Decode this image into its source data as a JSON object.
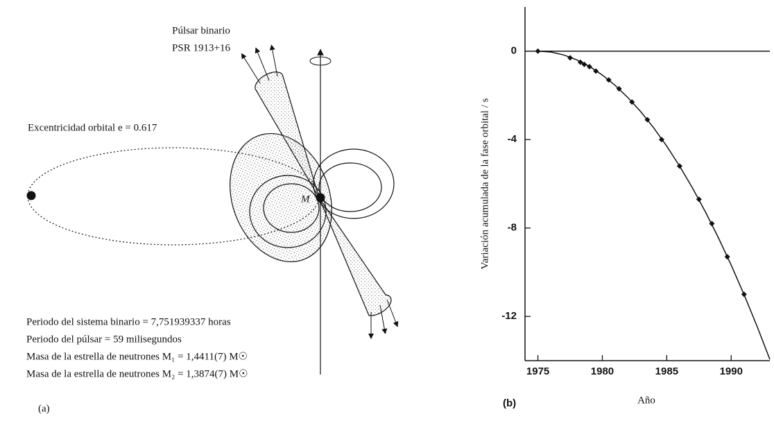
{
  "diagram": {
    "title": "Púlsar binario",
    "designation": "PSR 1913+16",
    "eccentricity": "Excentricidad orbital e = 0.617",
    "mass_label": "M",
    "lines": [
      "Periodo del sistema binario = 7,751939337 horas",
      "Periodo del púlsar = 59 milisegundos",
      "Masa de la estrella de neutrones M₁ = 1,4411(7) M☉",
      "Masa de la estrella de neutrones M₂ = 1,3874(7) M☉"
    ],
    "panel_label": "(a)"
  },
  "chart_data": {
    "type": "scatter",
    "panel_label": "(b)",
    "x_label": "Año",
    "y_label": "Variación acumulada de la fase orbital / s",
    "xlim": [
      1974,
      1993
    ],
    "ylim": [
      -14,
      2
    ],
    "xticks": [
      1975,
      1980,
      1985,
      1990
    ],
    "yticks": [
      0,
      -4,
      -8,
      -12
    ],
    "series": [
      {
        "style": "marker",
        "color": "#111111",
        "x": [
          1975.0,
          1977.5,
          1978.3,
          1978.6,
          1979.0,
          1979.5,
          1980.5,
          1981.3,
          1982.3,
          1983.5,
          1984.6,
          1986.0,
          1987.5,
          1988.5,
          1989.7,
          1991.0
        ],
        "values": [
          0,
          -0.3,
          -0.5,
          -0.6,
          -0.7,
          -0.9,
          -1.3,
          -1.7,
          -2.3,
          -3.1,
          -4.0,
          -5.2,
          -6.7,
          -7.8,
          -9.3,
          -11.0
        ]
      },
      {
        "style": "line",
        "color": "#111111",
        "x": [
          1975,
          1976,
          1977,
          1978,
          1979,
          1980,
          1981,
          1982,
          1983,
          1984,
          1985,
          1986,
          1987,
          1988,
          1989,
          1990,
          1991,
          1992,
          1993
        ],
        "values": [
          0,
          -0.04,
          -0.17,
          -0.39,
          -0.69,
          -1.08,
          -1.55,
          -2.11,
          -2.75,
          -3.48,
          -4.3,
          -5.2,
          -6.19,
          -7.27,
          -8.43,
          -9.68,
          -11.01,
          -12.43,
          -13.94
        ]
      },
      {
        "style": "line",
        "color": "#111111",
        "x": [
          1974,
          1993
        ],
        "values": [
          0,
          0
        ]
      }
    ]
  }
}
